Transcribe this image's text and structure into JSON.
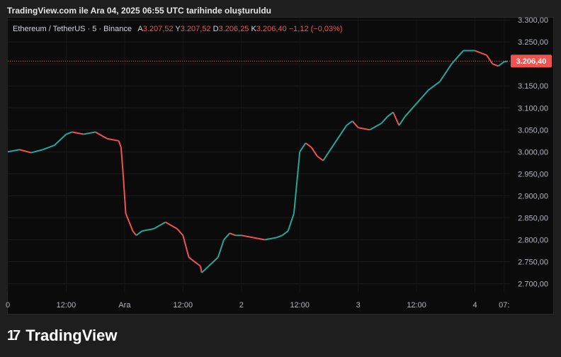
{
  "snapshot_title": "TradingView.com ile Ara 04, 2025 06:55 UTC tarihinde oluşturuldu",
  "legend": {
    "symbol": "Ethereum / TetherUS · 5 · Binance",
    "open_label": "A",
    "open_value": "3.207,52",
    "high_label": "Y",
    "high_value": "3.207,52",
    "low_label": "D",
    "low_value": "3.206,25",
    "close_label": "K",
    "close_value": "3.206,40",
    "change": "−1,12 (−0,03%)"
  },
  "price_tag": "3.206,40",
  "logo": {
    "mark": "17",
    "text": "TradingView"
  },
  "colors": {
    "up": "#26a69a",
    "down": "#ef5350",
    "background": "#0b0b0b",
    "frame": "#1e1e1e",
    "price_line": "#ef5350"
  },
  "chart_data": {
    "type": "line",
    "title": "Ethereum / TetherUS · 5 · Binance",
    "xlabel": "",
    "ylabel": "",
    "x_ticks": [
      "0",
      "12:00",
      "Ara",
      "12:00",
      "2",
      "12:00",
      "3",
      "12:00",
      "4",
      "07:"
    ],
    "y_ticks": [
      "3.300,00",
      "3.250,00",
      "3.200,00",
      "3.150,00",
      "3.100,00",
      "3.050,00",
      "3.000,00",
      "2.950,00",
      "2.900,00",
      "2.850,00",
      "2.800,00",
      "2.750,00",
      "2.700,00"
    ],
    "ylim": [
      2680,
      3305
    ],
    "x_unit": "days since Nov 30 00:00",
    "last_price": 3206.4,
    "series": [
      {
        "x": [
          0,
          0.1,
          0.2,
          0.3,
          0.4,
          0.5,
          0.55,
          0.65,
          0.75,
          0.85,
          0.95,
          0.97,
          0.99,
          1.01,
          1.04,
          1.07,
          1.1,
          1.15,
          1.25,
          1.35,
          1.45,
          1.5,
          1.55,
          1.65,
          1.66,
          1.72,
          1.8,
          1.85,
          1.9,
          1.95,
          2.0,
          2.1,
          2.2,
          2.3,
          2.35,
          2.4,
          2.45,
          2.5,
          2.55,
          2.6,
          2.65,
          2.7,
          2.75,
          2.8,
          2.85,
          2.9,
          2.95,
          3.0,
          3.1,
          3.2,
          3.25,
          3.3,
          3.35,
          3.4,
          3.5,
          3.6,
          3.7,
          3.8,
          3.9,
          4.0,
          4.05,
          4.1,
          4.15,
          4.2,
          4.25,
          4.28
        ],
        "values": [
          3000,
          3005,
          2998,
          3005,
          3015,
          3040,
          3045,
          3040,
          3045,
          3030,
          3025,
          3010,
          2940,
          2860,
          2840,
          2820,
          2810,
          2820,
          2825,
          2840,
          2825,
          2810,
          2760,
          2740,
          2725,
          2740,
          2760,
          2800,
          2815,
          2810,
          2810,
          2805,
          2800,
          2805,
          2810,
          2820,
          2860,
          3000,
          3020,
          3010,
          2990,
          2980,
          3000,
          3020,
          3040,
          3060,
          3070,
          3055,
          3050,
          3065,
          3080,
          3090,
          3060,
          3080,
          3110,
          3140,
          3160,
          3200,
          3230,
          3230,
          3225,
          3220,
          3200,
          3195,
          3205,
          3206
        ]
      }
    ],
    "grid": true,
    "legend": "top-left"
  }
}
